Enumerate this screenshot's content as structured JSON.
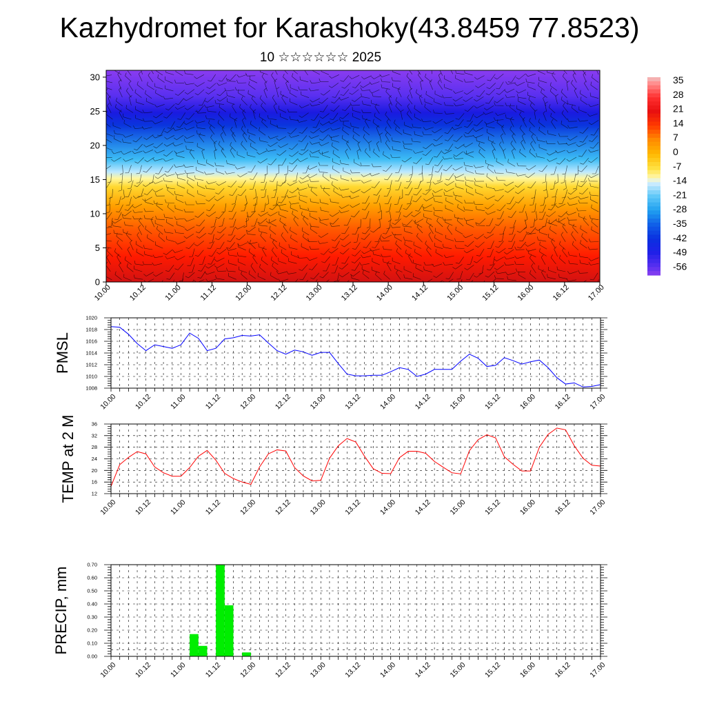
{
  "header": {
    "title": "Kazhydromet for Karashoky(43.8459 77.8523)",
    "subtitle": "10 ☆☆☆☆☆☆ 2025"
  },
  "colors": {
    "pmsl_line": "#0000ff",
    "temp_line": "#ff0000",
    "precip_bar": "#00ee00",
    "grid": "#000000",
    "background": "#ffffff"
  },
  "chart_data": [
    {
      "type": "heatmap",
      "title": "",
      "xlabel": "",
      "ylabel": "",
      "x_ticks": [
        "10.00",
        "10.12",
        "11.00",
        "11.12",
        "12.00",
        "12.12",
        "13.00",
        "13.12",
        "14.00",
        "14.12",
        "15.00",
        "15.12",
        "16.00",
        "16.12",
        "17.00"
      ],
      "y_ticks": [
        0,
        5,
        10,
        15,
        20,
        25,
        30
      ],
      "ylim": [
        0,
        31
      ],
      "colorbar": {
        "labels": [
          "35",
          "28",
          "21",
          "14",
          "7",
          "0",
          "-7",
          "-14",
          "-21",
          "-28",
          "-35",
          "-42",
          "-49",
          "-56"
        ],
        "range": [
          -60,
          38
        ]
      },
      "overlay": "wind barbs"
    },
    {
      "type": "line",
      "ylabel": "PMSL",
      "ylim": [
        1008,
        1020
      ],
      "y_ticks": [
        "1020",
        "1018",
        "1016",
        "1014",
        "1012",
        "1010",
        "1008"
      ],
      "x_ticks": [
        "10.00",
        "10.12",
        "11.00",
        "11.12",
        "12.00",
        "12.12",
        "13.00",
        "13.12",
        "14.00",
        "14.12",
        "15.00",
        "15.12",
        "16.00",
        "16.12",
        "17.00"
      ],
      "x": [
        0,
        0.125,
        0.25,
        0.375,
        0.5,
        0.625,
        0.75,
        0.875,
        1,
        1.125,
        1.25,
        1.375,
        1.5,
        1.625,
        1.75,
        1.875,
        2,
        2.125,
        2.25,
        2.375,
        2.5,
        2.625,
        2.75,
        2.875,
        3,
        3.125,
        3.25,
        3.375,
        3.5,
        3.625,
        3.75,
        3.875,
        4,
        4.125,
        4.25,
        4.375,
        4.5,
        4.625,
        4.75,
        4.875,
        5,
        5.125,
        5.25,
        5.375,
        5.5,
        5.625,
        5.75,
        5.875,
        6,
        6.125,
        6.25,
        6.375,
        6.5,
        6.625,
        6.75,
        6.875,
        7
      ],
      "series": [
        {
          "values": [
            1018.5,
            1018.4,
            1017.2,
            1015.6,
            1014.4,
            1015.4,
            1015.1,
            1014.8,
            1015.4,
            1017.4,
            1016.5,
            1014.4,
            1014.8,
            1016.4,
            1016.6,
            1017.0,
            1016.9,
            1017.1,
            1015.7,
            1014.4,
            1013.8,
            1014.5,
            1014.2,
            1013.6,
            1014.1,
            1014.1,
            1012.2,
            1010.4,
            1010.1,
            1010.1,
            1010.2,
            1010.2,
            1010.8,
            1011.5,
            1011.2,
            1010.0,
            1010.4,
            1011.2,
            1011.2,
            1011.2,
            1012.6,
            1013.8,
            1013.1,
            1011.7,
            1011.9,
            1013.2,
            1012.7,
            1012.1,
            1012.5,
            1012.8,
            1011.5,
            1009.8,
            1008.7,
            1008.9,
            1008.2,
            1008.3,
            1008.6
          ]
        }
      ]
    },
    {
      "type": "line",
      "ylabel": "TEMP at 2 M",
      "ylim": [
        12,
        36
      ],
      "y_ticks": [
        "36",
        "32",
        "28",
        "24",
        "20",
        "16",
        "12"
      ],
      "x_ticks": [
        "10.00",
        "10.12",
        "11.00",
        "11.12",
        "12.00",
        "12.12",
        "13.00",
        "13.12",
        "14.00",
        "14.12",
        "15.00",
        "15.12",
        "16.00",
        "16.12",
        "17.00"
      ],
      "x": [
        0,
        0.125,
        0.25,
        0.375,
        0.5,
        0.625,
        0.75,
        0.875,
        1,
        1.125,
        1.25,
        1.375,
        1.5,
        1.625,
        1.75,
        1.875,
        2,
        2.125,
        2.25,
        2.375,
        2.5,
        2.625,
        2.75,
        2.875,
        3,
        3.125,
        3.25,
        3.375,
        3.5,
        3.625,
        3.75,
        3.875,
        4,
        4.125,
        4.25,
        4.375,
        4.5,
        4.625,
        4.75,
        4.875,
        5,
        5.125,
        5.25,
        5.375,
        5.5,
        5.625,
        5.75,
        5.875,
        6,
        6.125,
        6.25,
        6.375,
        6.5,
        6.625,
        6.75,
        6.875,
        7
      ],
      "series": [
        {
          "values": [
            14.5,
            22.0,
            24.5,
            26.5,
            25.7,
            21.2,
            19.2,
            18.0,
            18.0,
            21.0,
            24.9,
            26.9,
            23.5,
            19.0,
            17.2,
            16.0,
            15.2,
            21.2,
            25.7,
            27.1,
            26.7,
            21.0,
            18.1,
            16.4,
            16.6,
            24.2,
            28.5,
            31.0,
            29.8,
            24.9,
            20.6,
            19.0,
            18.9,
            24.4,
            26.6,
            26.6,
            25.9,
            23.1,
            21.1,
            19.2,
            18.8,
            26.8,
            30.6,
            32.3,
            31.2,
            24.7,
            22.1,
            19.8,
            19.8,
            28.0,
            32.4,
            34.6,
            34.0,
            28.5,
            24.2,
            21.8,
            21.5
          ]
        }
      ]
    },
    {
      "type": "bar",
      "ylabel": "PRECIP, mm",
      "ylim": [
        0,
        0.7
      ],
      "y_ticks": [
        "0.70",
        "0.60",
        "0.50",
        "0.40",
        "0.30",
        "0.20",
        "0.10",
        "0.00"
      ],
      "x_ticks": [
        "10.00",
        "10.12",
        "11.00",
        "11.12",
        "12.00",
        "12.12",
        "13.00",
        "13.12",
        "14.00",
        "14.12",
        "15.00",
        "15.12",
        "16.00",
        "16.12",
        "17.00"
      ],
      "x": [
        1.125,
        1.25,
        1.5,
        1.625,
        1.875
      ],
      "values": [
        0.17,
        0.08,
        0.7,
        0.39,
        0.03
      ]
    }
  ]
}
